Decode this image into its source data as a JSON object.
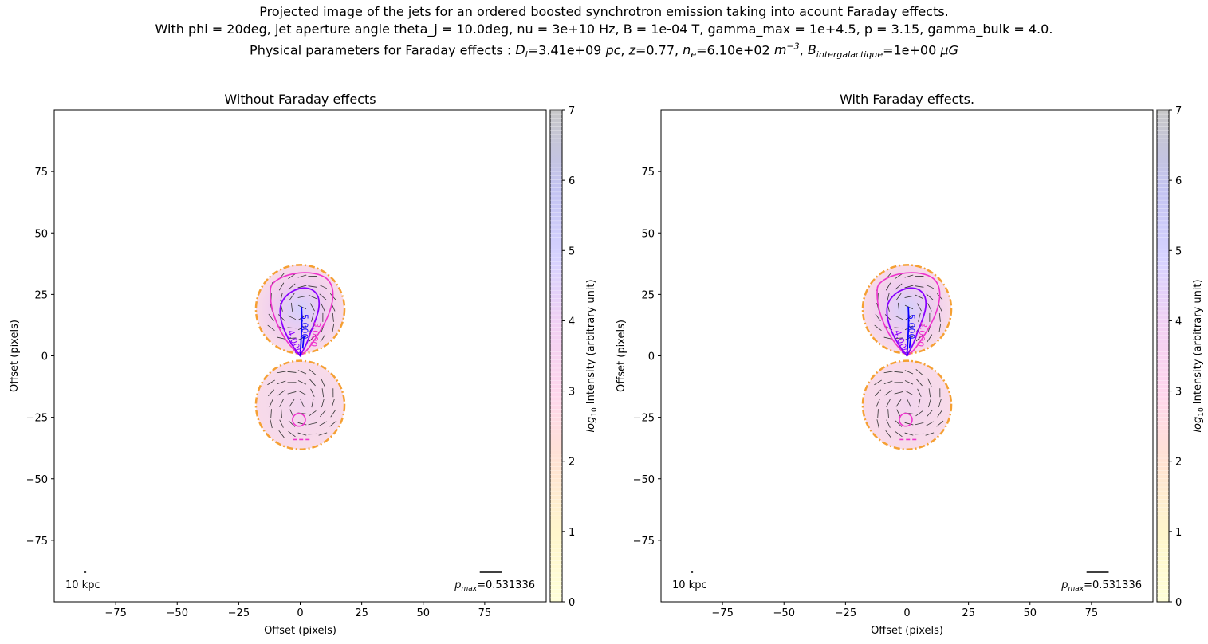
{
  "figure": {
    "title_lines": [
      "Projected image of the jets for an ordered boosted synchrotron emission taking into acount Faraday effects.",
      "With phi = 20deg, jet aperture angle theta_j = 10.0deg, nu = 3e+10 Hz, B = 1e-04 T, gamma_max = 1e+4.5, p = 3.15, gamma_bulk = 4.0.",
      "Physical parameters for Faraday effects : D_l=3.41e+09 pc, z=0.77, n_e=6.10e+02 m^-3, B_intergalactique=1e+00 μG"
    ]
  },
  "chart_data": [
    {
      "type": "heatmap",
      "title": "Without Faraday effects",
      "xlabel": "Offset (pixels)",
      "ylabel": "Offset (pixels)",
      "xlim": [
        -100,
        100
      ],
      "ylim": [
        -100,
        100
      ],
      "xticks": [
        -75,
        -50,
        -25,
        0,
        25,
        50,
        75
      ],
      "yticks": [
        -75,
        -50,
        -25,
        0,
        25,
        50,
        75
      ],
      "colorbar": {
        "label": "log10 Intensity (arbitrary unit)",
        "range": [
          0,
          7
        ],
        "ticks": [
          0,
          1,
          2,
          3,
          4,
          5,
          6,
          7
        ]
      },
      "lobes": [
        {
          "name": "upper",
          "center": [
            0,
            19
          ],
          "radius": 18
        },
        {
          "name": "lower",
          "center": [
            0,
            -20
          ],
          "radius": 18
        }
      ],
      "contour_labels": [
        "5.000",
        "4.000",
        "3.000"
      ],
      "scale_bar_label": "10 kpc",
      "pmax_label": "p_max=0.531336"
    },
    {
      "type": "heatmap",
      "title": "With Faraday effects.",
      "xlabel": "Offset (pixels)",
      "ylabel": "Offset (pixels)",
      "xlim": [
        -100,
        100
      ],
      "ylim": [
        -100,
        100
      ],
      "xticks": [
        -75,
        -50,
        -25,
        0,
        25,
        50,
        75
      ],
      "yticks": [
        -75,
        -50,
        -25,
        0,
        25,
        50,
        75
      ],
      "colorbar": {
        "label": "log10 Intensity (arbitrary unit)",
        "range": [
          0,
          7
        ],
        "ticks": [
          0,
          1,
          2,
          3,
          4,
          5,
          6,
          7
        ]
      },
      "lobes": [
        {
          "name": "upper",
          "center": [
            0,
            19
          ],
          "radius": 18
        },
        {
          "name": "lower",
          "center": [
            0,
            -20
          ],
          "radius": 18
        }
      ],
      "contour_labels": [
        "5.000",
        "4.000",
        "3.000"
      ],
      "scale_bar_label": "10 kpc",
      "pmax_label": "p_max=0.531336"
    }
  ],
  "colors": {
    "outer_contour": "#f5a033",
    "contour_3": "#ee33cc",
    "contour_4": "#8a00ff",
    "contour_5": "#0a00ff",
    "lobe_fill": "#f6d0e6",
    "core_fill": "#d4d0fb"
  }
}
